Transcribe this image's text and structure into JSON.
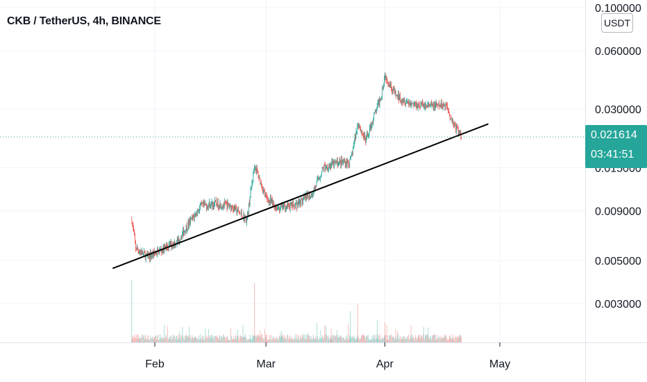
{
  "header": {
    "title": "CKB / TetherUS, 4h, BINANCE"
  },
  "axis_unit": "USDT",
  "last_price": {
    "value": "0.021614",
    "countdown": "03:41:51",
    "color": "#26a69a"
  },
  "colors": {
    "up": "#26a69a",
    "down": "#ef5350",
    "trendline": "#000000",
    "grid": "#f0f3fa"
  },
  "chart_data": {
    "type": "candlestick",
    "title": "CKB / TetherUS, 4h, BINANCE",
    "scale": "log",
    "y_ticks": [
      {
        "value": 0.1,
        "label": "0.100000"
      },
      {
        "value": 0.06,
        "label": "0.060000"
      },
      {
        "value": 0.03,
        "label": "0.030000"
      },
      {
        "value": 0.015,
        "label": "0.015000"
      },
      {
        "value": 0.009,
        "label": "0.009000"
      },
      {
        "value": 0.005,
        "label": "0.005000"
      },
      {
        "value": 0.003,
        "label": "0.003000"
      }
    ],
    "x_ticks": [
      {
        "date": "2020-02-01",
        "label": "Feb"
      },
      {
        "date": "2020-03-01",
        "label": "Mar"
      },
      {
        "date": "2020-04-01",
        "label": "Apr"
      },
      {
        "date": "2020-05-01",
        "label": "May"
      }
    ],
    "x_range": [
      "2020-01-21",
      "2020-05-31"
    ],
    "y_range": [
      0.0023,
      0.105
    ],
    "price_path": [
      {
        "date": "2020-01-26",
        "close": 0.0081
      },
      {
        "date": "2020-01-27",
        "close": 0.0058
      },
      {
        "date": "2020-01-30",
        "close": 0.0052
      },
      {
        "date": "2020-02-03",
        "close": 0.0057
      },
      {
        "date": "2020-02-07",
        "close": 0.0063
      },
      {
        "date": "2020-02-10",
        "close": 0.0078
      },
      {
        "date": "2020-02-13",
        "close": 0.0095
      },
      {
        "date": "2020-02-17",
        "close": 0.0098
      },
      {
        "date": "2020-02-21",
        "close": 0.0095
      },
      {
        "date": "2020-02-25",
        "close": 0.0081
      },
      {
        "date": "2020-02-27",
        "close": 0.0155
      },
      {
        "date": "2020-03-01",
        "close": 0.0105
      },
      {
        "date": "2020-03-04",
        "close": 0.0093
      },
      {
        "date": "2020-03-09",
        "close": 0.0097
      },
      {
        "date": "2020-03-13",
        "close": 0.011
      },
      {
        "date": "2020-03-16",
        "close": 0.015
      },
      {
        "date": "2020-03-20",
        "close": 0.016
      },
      {
        "date": "2020-03-23",
        "close": 0.016
      },
      {
        "date": "2020-03-25",
        "close": 0.0255
      },
      {
        "date": "2020-03-27",
        "close": 0.0205
      },
      {
        "date": "2020-03-29",
        "close": 0.027
      },
      {
        "date": "2020-03-31",
        "close": 0.035
      },
      {
        "date": "2020-04-01",
        "close": 0.045
      },
      {
        "date": "2020-04-04",
        "close": 0.035
      },
      {
        "date": "2020-04-08",
        "close": 0.032
      },
      {
        "date": "2020-04-13",
        "close": 0.031
      },
      {
        "date": "2020-04-17",
        "close": 0.0315
      },
      {
        "date": "2020-04-19",
        "close": 0.025
      },
      {
        "date": "2020-04-21",
        "close": 0.0216
      }
    ],
    "volume_spikes": [
      {
        "date": "2020-01-26",
        "rel": 1.0
      },
      {
        "date": "2020-02-27",
        "rel": 0.95
      },
      {
        "date": "2020-03-23",
        "rel": 0.5
      },
      {
        "date": "2020-03-25",
        "rel": 0.62
      },
      {
        "date": "2020-03-30",
        "rel": 0.35
      },
      {
        "date": "2020-04-01",
        "rel": 0.32
      },
      {
        "date": "2020-03-05",
        "rel": 0.18
      },
      {
        "date": "2020-03-18",
        "rel": 0.22
      }
    ],
    "trendline": [
      {
        "date": "2020-01-21",
        "price": 0.00455
      },
      {
        "date": "2020-04-28",
        "price": 0.0252
      }
    ],
    "last_price_line": 0.021614
  }
}
